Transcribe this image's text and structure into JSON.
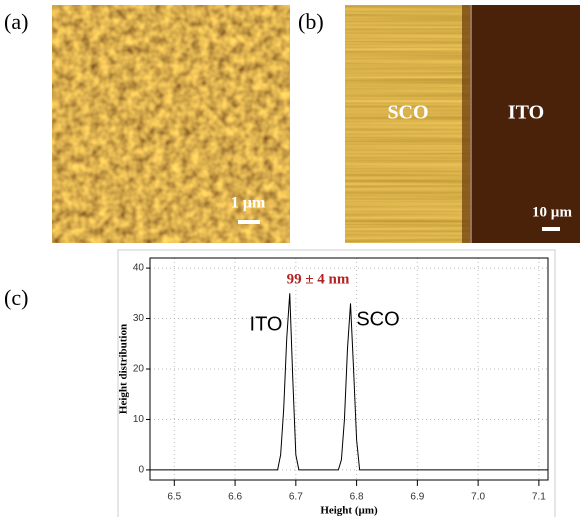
{
  "panels": {
    "a": {
      "label": "(a)",
      "scale_bar": "1 µm"
    },
    "b": {
      "label": "(b)",
      "left_region": "SCO",
      "right_region": "ITO",
      "scale_bar": "10 µm"
    },
    "c": {
      "label": "(c)"
    }
  },
  "chart_data": {
    "type": "line",
    "x_label": "Height (µm)",
    "y_label": "Height distribution",
    "annotations": {
      "difference": "99 ± 4 nm",
      "left_peak": "ITO",
      "right_peak": "SCO"
    },
    "x": [
      6.46,
      6.67,
      6.675,
      6.68,
      6.685,
      6.69,
      6.695,
      6.7,
      6.705,
      6.77,
      6.775,
      6.78,
      6.785,
      6.79,
      6.795,
      6.8,
      6.805,
      7.115
    ],
    "series": [
      {
        "name": "distribution",
        "color": "#000000",
        "values": [
          0,
          0,
          3,
          12,
          26,
          35,
          18,
          3,
          0,
          0,
          2,
          10,
          24,
          33,
          20,
          6,
          0,
          0
        ]
      }
    ],
    "xlim": [
      6.46,
      7.115
    ],
    "ylim": [
      -2,
      42
    ],
    "xticks": [
      6.5,
      6.6,
      6.7,
      6.8,
      6.9,
      {
        "value": 7,
        "label": "7.0"
      },
      7.1
    ],
    "yticks": [
      0,
      10,
      20,
      30,
      40
    ],
    "grid": true
  }
}
